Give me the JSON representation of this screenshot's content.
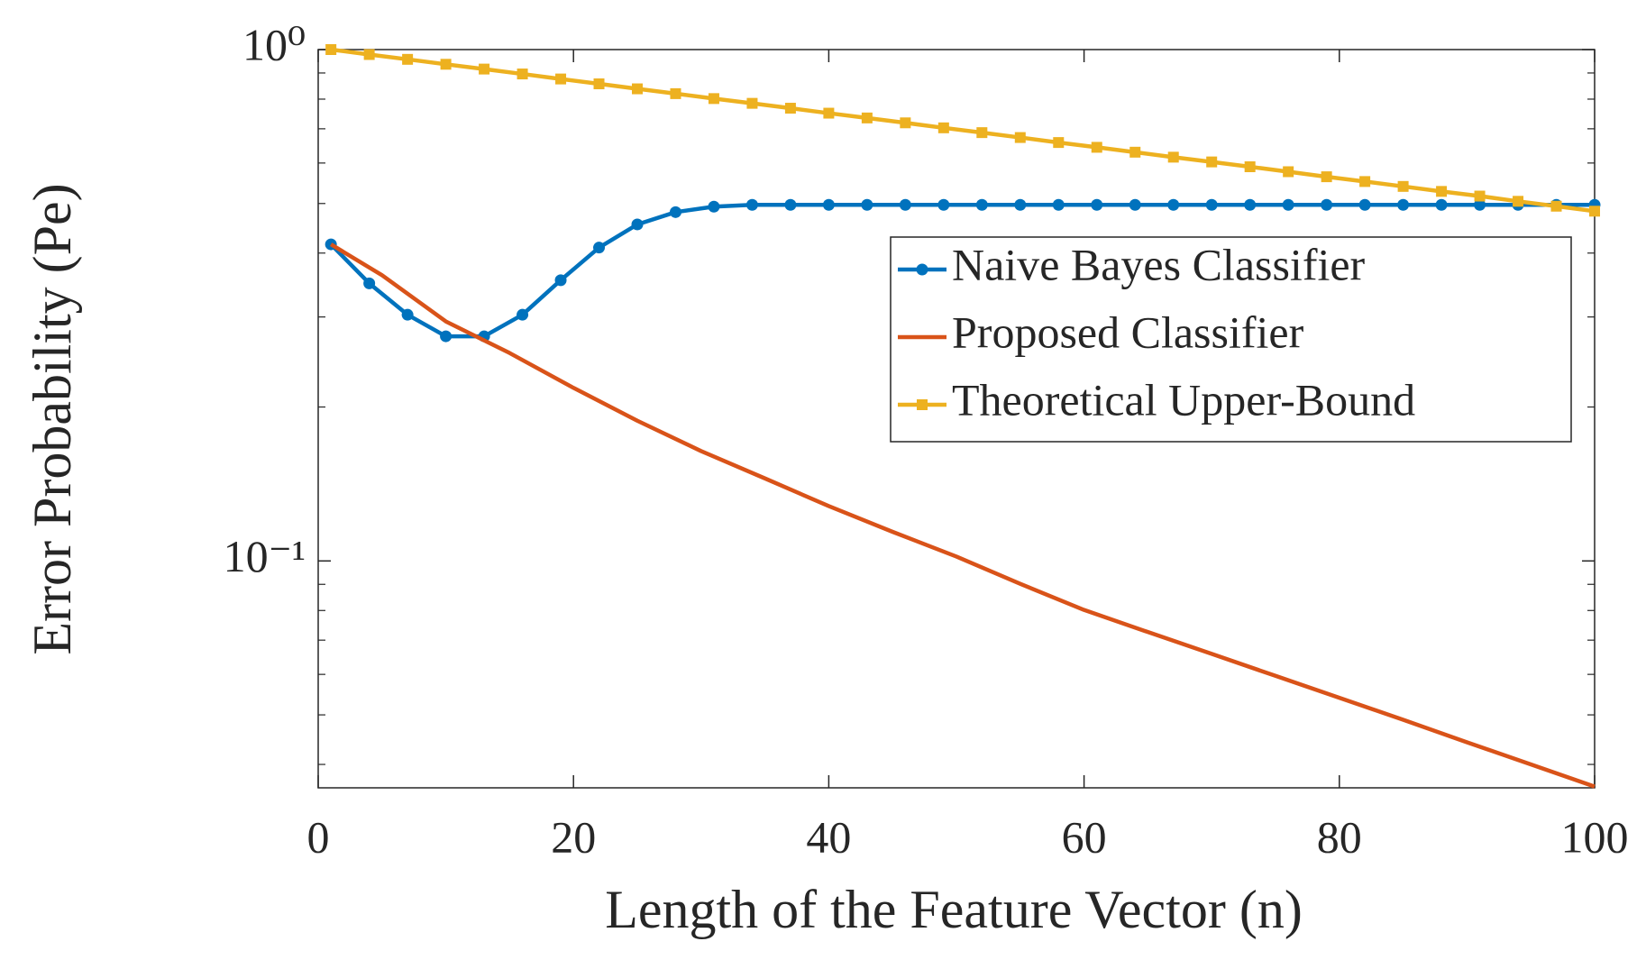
{
  "chart_data": {
    "type": "line",
    "xlabel": "Length of the Feature Vector (n)",
    "ylabel": "Error Probability (Pe)",
    "xlim": [
      0,
      100
    ],
    "xticks": [
      0,
      20,
      40,
      60,
      80,
      100
    ],
    "ylim": [
      0.036,
      1
    ],
    "yscale": "log",
    "yticks": [
      {
        "value": 0.1,
        "label": "10⁻¹"
      },
      {
        "value": 1,
        "label": "10⁰"
      }
    ],
    "yminorticks": [
      0.04,
      0.05,
      0.06,
      0.07,
      0.08,
      0.09,
      0.2,
      0.3,
      0.4,
      0.5,
      0.6,
      0.7,
      0.8,
      0.9
    ],
    "legend": "upper right",
    "series": [
      {
        "name": "Naive Bayes Classifier",
        "color": "#0072BD",
        "marker": "circle",
        "x": [
          1,
          4,
          7,
          10,
          13,
          16,
          19,
          22,
          25,
          28,
          31,
          34,
          37,
          40,
          43,
          46,
          49,
          52,
          55,
          58,
          61,
          64,
          67,
          70,
          73,
          76,
          79,
          82,
          85,
          88,
          91,
          94,
          97,
          100
        ],
        "values": [
          0.416,
          0.349,
          0.303,
          0.275,
          0.275,
          0.303,
          0.354,
          0.41,
          0.455,
          0.481,
          0.493,
          0.497,
          0.497,
          0.497,
          0.497,
          0.497,
          0.497,
          0.497,
          0.497,
          0.497,
          0.497,
          0.497,
          0.497,
          0.497,
          0.497,
          0.497,
          0.497,
          0.497,
          0.497,
          0.497,
          0.497,
          0.497,
          0.497,
          0.497
        ]
      },
      {
        "name": "Proposed Classifier",
        "color": "#D95319",
        "marker": "none",
        "x": [
          1,
          5,
          10,
          15,
          20,
          25,
          30,
          35,
          40,
          45,
          50,
          55,
          60,
          65,
          70,
          75,
          80,
          85,
          90,
          95,
          100
        ],
        "values": [
          0.416,
          0.362,
          0.294,
          0.255,
          0.218,
          0.188,
          0.164,
          0.145,
          0.128,
          0.114,
          0.102,
          0.0902,
          0.0802,
          0.0726,
          0.0658,
          0.0596,
          0.054,
          0.0489,
          0.0442,
          0.04,
          0.0362
        ]
      },
      {
        "name": "Theoretical Upper-Bound",
        "color": "#EDB120",
        "marker": "square",
        "x": [
          1,
          4,
          7,
          10,
          13,
          16,
          19,
          22,
          25,
          28,
          31,
          34,
          37,
          40,
          43,
          46,
          49,
          52,
          55,
          58,
          61,
          64,
          67,
          70,
          73,
          76,
          79,
          82,
          85,
          88,
          91,
          94,
          97,
          100
        ],
        "values": [
          1,
          0.978,
          0.957,
          0.936,
          0.916,
          0.896,
          0.876,
          0.857,
          0.838,
          0.82,
          0.802,
          0.785,
          0.768,
          0.751,
          0.735,
          0.719,
          0.703,
          0.688,
          0.673,
          0.658,
          0.644,
          0.63,
          0.616,
          0.603,
          0.59,
          0.577,
          0.564,
          0.552,
          0.54,
          0.528,
          0.517,
          0.505,
          0.494,
          0.483
        ]
      }
    ]
  }
}
